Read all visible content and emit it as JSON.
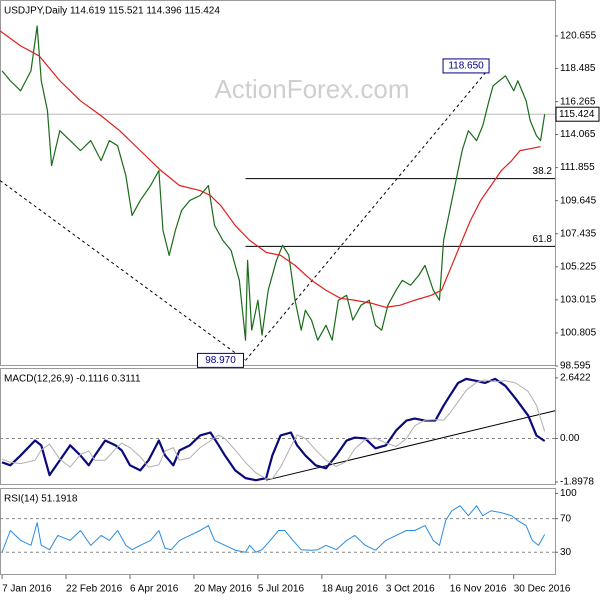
{
  "chart_data": [
    {
      "type": "line",
      "title": "USDJPY,Daily 114.619 115.521 114.396 115.424",
      "watermark": "ActionForex.com",
      "xlim": [
        -1,
        268
      ],
      "ylim": [
        98.595,
        122.99
      ],
      "yticks": [
        98.595,
        100.805,
        103.015,
        105.225,
        107.435,
        109.645,
        111.855,
        114.065,
        116.265,
        118.485,
        120.655
      ],
      "last_price": {
        "value": 115.424,
        "label": "115.424"
      },
      "series": [
        {
          "color": "#1a6b1a",
          "x": [
            0,
            4,
            9,
            14,
            17,
            19,
            22,
            24,
            28,
            33,
            38,
            43,
            48,
            52,
            56,
            60,
            63,
            67,
            72,
            76,
            78,
            81,
            84,
            87,
            91,
            96,
            100,
            103,
            107,
            111,
            115,
            118,
            119,
            121,
            124,
            126,
            129,
            133,
            136,
            139,
            142,
            145,
            147,
            150,
            153,
            157,
            160,
            163,
            167,
            170,
            174,
            178,
            181,
            184,
            187,
            191,
            194,
            198,
            202,
            205,
            209,
            212,
            214,
            217,
            220,
            223,
            226,
            230,
            233,
            236,
            238,
            241,
            244,
            248,
            250,
            254,
            256,
            259,
            261,
            263
          ],
          "values": [
            118.32,
            117.66,
            116.99,
            118.32,
            121.32,
            117.66,
            115.66,
            111.99,
            114.32,
            113.66,
            112.99,
            113.66,
            112.32,
            113.66,
            113.32,
            111.32,
            108.66,
            109.66,
            110.66,
            111.66,
            107.66,
            105.99,
            107.66,
            108.99,
            109.66,
            109.99,
            110.66,
            107.99,
            106.99,
            106.32,
            104.32,
            100.32,
            105.66,
            100.99,
            102.99,
            100.66,
            103.66,
            105.66,
            106.66,
            105.99,
            102.99,
            100.99,
            102.32,
            101.66,
            100.32,
            101.32,
            100.32,
            102.99,
            103.32,
            101.66,
            102.66,
            102.99,
            101.32,
            100.99,
            102.66,
            103.66,
            104.32,
            103.99,
            104.66,
            105.32,
            103.66,
            102.99,
            106.99,
            108.99,
            110.99,
            112.99,
            114.32,
            113.66,
            114.66,
            116.32,
            117.32,
            117.66,
            117.99,
            116.99,
            117.66,
            116.32,
            114.99,
            113.99,
            113.66,
            115.424
          ]
        },
        {
          "color": "#e0201b",
          "x": [
            -1,
            9,
            18,
            28,
            38,
            48,
            57,
            67,
            77,
            86,
            96,
            101,
            106,
            113,
            120,
            128,
            135,
            142,
            150,
            157,
            164,
            171,
            179,
            186,
            193,
            200,
            208,
            213,
            217,
            222,
            227,
            232,
            237,
            242,
            247,
            251,
            256,
            261
          ],
          "values": [
            120.99,
            119.99,
            119.32,
            117.66,
            116.32,
            115.32,
            114.32,
            112.99,
            111.66,
            110.66,
            110.32,
            109.99,
            109.32,
            107.99,
            106.99,
            106.19,
            105.99,
            105.32,
            104.32,
            103.66,
            103.12,
            102.99,
            102.79,
            102.52,
            102.66,
            102.99,
            103.32,
            103.66,
            104.99,
            106.66,
            108.32,
            109.66,
            110.66,
            111.66,
            112.32,
            112.99,
            113.12,
            113.26
          ]
        }
      ],
      "annotations": [
        {
          "label": "118.650",
          "x": 237,
          "y": 118.65
        },
        {
          "label": "98.970",
          "x": 118,
          "y": 98.97
        }
      ],
      "fib_levels": [
        {
          "label": "38.2",
          "value": 111.12,
          "x": 118
        },
        {
          "label": "61.8",
          "value": 106.59,
          "x": 118
        }
      ],
      "trendlines": [
        {
          "x": [
            -1,
            118
          ],
          "y": [
            110.99,
            98.97
          ]
        },
        {
          "x": [
            118,
            237
          ],
          "y": [
            98.97,
            118.65
          ]
        }
      ]
    },
    {
      "type": "line",
      "title": "MACD(12,26,9) -0.1116 0.3111",
      "xlim": [
        -1,
        268
      ],
      "ylim": [
        -2.03,
        3.03
      ],
      "yticks": [
        -1.8978,
        {
          "value": 0,
          "label": "0.00"
        },
        2.6422
      ],
      "levels": [
        0
      ],
      "series": [
        {
          "color": "#0a0a7a",
          "width": 2.2,
          "x": [
            0,
            4,
            9,
            16,
            19,
            23,
            28,
            33,
            38,
            42,
            45,
            50,
            55,
            58,
            62,
            67,
            71,
            76,
            79,
            83,
            86,
            91,
            96,
            101,
            105,
            108,
            113,
            118,
            123,
            128,
            131,
            135,
            140,
            143,
            147,
            152,
            157,
            162,
            167,
            171,
            176,
            181,
            186,
            191,
            196,
            200,
            205,
            210,
            214,
            217,
            221,
            225,
            230,
            234,
            239,
            244,
            249,
            255,
            259,
            263
          ],
          "values": [
            -1.04,
            -1.17,
            -0.74,
            -0.09,
            -0.3,
            -1.6,
            -0.95,
            -0.3,
            -0.74,
            -1.17,
            -0.74,
            -0.09,
            -0.3,
            -0.52,
            -1.17,
            -1.39,
            -0.95,
            -0.09,
            -0.74,
            -1.17,
            -0.52,
            -0.3,
            0.13,
            0.26,
            -0.3,
            -0.74,
            -1.39,
            -1.73,
            -1.82,
            -1.73,
            -0.74,
            0.13,
            0.26,
            -0.3,
            -0.74,
            -1.17,
            -1.3,
            -0.74,
            -0.09,
            0.04,
            0.0,
            -0.43,
            -0.3,
            0.35,
            0.78,
            0.87,
            0.78,
            0.78,
            1.43,
            1.86,
            2.42,
            2.6,
            2.51,
            2.42,
            2.6,
            2.29,
            1.73,
            1.0,
            0.13,
            -0.1116
          ]
        },
        {
          "color": "#b0b0b0",
          "width": 1,
          "x": [
            0,
            4,
            9,
            16,
            19,
            23,
            28,
            33,
            38,
            42,
            45,
            50,
            55,
            58,
            62,
            67,
            71,
            76,
            79,
            83,
            86,
            91,
            96,
            101,
            105,
            108,
            113,
            118,
            123,
            128,
            131,
            135,
            140,
            143,
            147,
            152,
            157,
            162,
            167,
            171,
            176,
            181,
            186,
            191,
            196,
            200,
            205,
            210,
            214,
            217,
            221,
            225,
            230,
            234,
            239,
            244,
            249,
            255,
            259,
            263
          ],
          "values": [
            -0.9,
            -1.04,
            -1.1,
            -0.95,
            -0.5,
            -0.25,
            -0.9,
            -1.25,
            -0.7,
            -0.55,
            -0.95,
            -0.95,
            -0.45,
            -0.2,
            -0.4,
            -0.8,
            -1.25,
            -1.15,
            -0.55,
            -0.4,
            -0.95,
            -0.85,
            -0.4,
            -0.1,
            0.15,
            0.0,
            -0.5,
            -1.05,
            -1.5,
            -1.75,
            -1.75,
            -1.25,
            -0.35,
            0.15,
            0.0,
            -0.5,
            -0.95,
            -1.22,
            -1.0,
            -0.45,
            -0.05,
            0.02,
            -0.2,
            -0.35,
            0.0,
            0.55,
            0.8,
            0.82,
            0.8,
            1.1,
            1.6,
            2.1,
            2.45,
            2.55,
            2.48,
            2.52,
            2.42,
            2.05,
            1.45,
            0.3111
          ]
        }
      ],
      "trendlines": [
        {
          "x": [
            128,
            268
          ],
          "y": [
            -1.82,
            1.21
          ]
        }
      ]
    },
    {
      "type": "line",
      "title": "RSI(14) 51.1918",
      "xlim": [
        -1,
        268
      ],
      "ylim": [
        2.9,
        105.3
      ],
      "yticks": [
        30,
        70,
        100
      ],
      "levels": [
        30,
        70
      ],
      "xticks": [
        {
          "value": 0,
          "label": "7 Jan 2016"
        },
        {
          "value": 31,
          "label": "22 Feb 2016"
        },
        {
          "value": 62,
          "label": "6 Apr 2016"
        },
        {
          "value": 93,
          "label": "20 May 2016"
        },
        {
          "value": 124,
          "label": "5 Jul 2016"
        },
        {
          "value": 155,
          "label": "18 Aug 2016"
        },
        {
          "value": 186,
          "label": "3 Oct 2016"
        },
        {
          "value": 217,
          "label": "16 Nov 2016"
        },
        {
          "value": 248,
          "label": "30 Dec 2016"
        }
      ],
      "series": [
        {
          "color": "#2a8be0",
          "width": 1,
          "x": [
            0,
            4,
            9,
            14,
            17,
            19,
            23,
            27,
            33,
            38,
            43,
            48,
            52,
            56,
            60,
            63,
            67,
            72,
            76,
            79,
            82,
            86,
            91,
            96,
            100,
            103,
            108,
            113,
            118,
            120,
            123,
            126,
            130,
            134,
            137,
            141,
            145,
            150,
            153,
            157,
            162,
            167,
            171,
            176,
            181,
            186,
            191,
            196,
            200,
            205,
            209,
            212,
            215,
            218,
            222,
            226,
            230,
            233,
            237,
            242,
            247,
            250,
            254,
            257,
            260,
            263
          ],
          "values": [
            30.0,
            55.9,
            44.1,
            38.2,
            65.3,
            38.2,
            33,
            50.0,
            44.1,
            55.9,
            38.2,
            50.0,
            44.1,
            55.9,
            38.2,
            33,
            38.2,
            44.1,
            55.9,
            34.7,
            33,
            44.1,
            50.0,
            55.9,
            61.8,
            44.1,
            38.2,
            32.4,
            30,
            38.2,
            30,
            33,
            44.1,
            55.9,
            55.9,
            44.1,
            33,
            32.4,
            33,
            38.2,
            33,
            44.1,
            50.0,
            38.2,
            32.4,
            44.1,
            50.0,
            55.9,
            55.9,
            61.8,
            44.1,
            38.2,
            67.6,
            79.4,
            85.3,
            73.5,
            85.3,
            73.5,
            79.4,
            77.1,
            73.5,
            67.6,
            61.8,
            44.1,
            38.2,
            51.1918
          ]
        }
      ]
    }
  ]
}
